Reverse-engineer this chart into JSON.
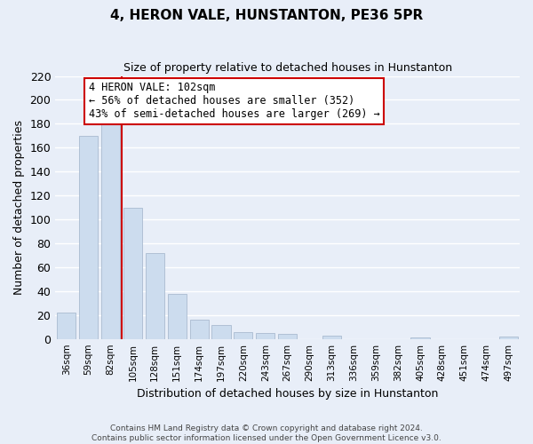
{
  "title": "4, HERON VALE, HUNSTANTON, PE36 5PR",
  "subtitle": "Size of property relative to detached houses in Hunstanton",
  "xlabel": "Distribution of detached houses by size in Hunstanton",
  "ylabel": "Number of detached properties",
  "bar_labels": [
    "36sqm",
    "59sqm",
    "82sqm",
    "105sqm",
    "128sqm",
    "151sqm",
    "174sqm",
    "197sqm",
    "220sqm",
    "243sqm",
    "267sqm",
    "290sqm",
    "313sqm",
    "336sqm",
    "359sqm",
    "382sqm",
    "405sqm",
    "428sqm",
    "451sqm",
    "474sqm",
    "497sqm"
  ],
  "bar_values": [
    22,
    170,
    180,
    110,
    72,
    38,
    16,
    12,
    6,
    5,
    4,
    0,
    3,
    0,
    0,
    0,
    1,
    0,
    0,
    0,
    2
  ],
  "bar_color": "#ccdcee",
  "bar_edge_color": "#aabbd0",
  "vline_color": "#cc0000",
  "ylim": [
    0,
    220
  ],
  "yticks": [
    0,
    20,
    40,
    60,
    80,
    100,
    120,
    140,
    160,
    180,
    200,
    220
  ],
  "annotation_title": "4 HERON VALE: 102sqm",
  "annotation_line1": "← 56% of detached houses are smaller (352)",
  "annotation_line2": "43% of semi-detached houses are larger (269) →",
  "annotation_box_color": "white",
  "annotation_box_edge": "#cc0000",
  "footer_line1": "Contains HM Land Registry data © Crown copyright and database right 2024.",
  "footer_line2": "Contains public sector information licensed under the Open Government Licence v3.0.",
  "bg_color": "#e8eef8",
  "grid_color": "#ffffff"
}
